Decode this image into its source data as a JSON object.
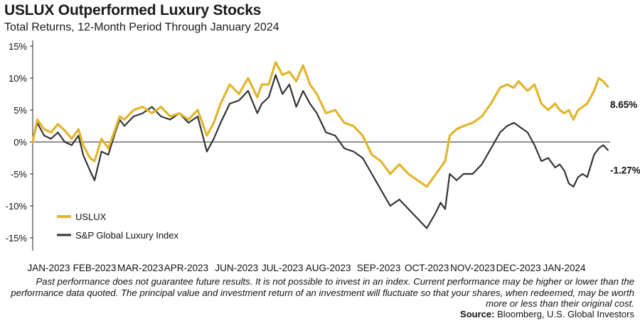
{
  "header": {
    "title": "USLUX Outperformed Luxury Stocks",
    "subtitle": "Total Returns, 12-Month Period Through January 2024"
  },
  "footer": {
    "disclaimer": "Past performance does not guarantee future results. It is not possible to invest in an index. Current performance may be higher or lower than the performance data quoted. The principal value and investment return of an investment will fluctuate so that your shares, when redeemed, may be worth more or less than their original cost.",
    "source_label": "Source:",
    "source_text": "Bloomberg, U.S. Global Investors"
  },
  "colors": {
    "uslux": "#e3b52c",
    "luxury_index": "#333333",
    "axis": "#222222"
  },
  "chart_data": {
    "type": "line",
    "title": "USLUX Outperformed Luxury Stocks",
    "subtitle": "Total Returns, 12-Month Period Through January 2024",
    "xlabel": "",
    "ylabel": "",
    "ylim": [
      -15,
      15
    ],
    "yticks": [
      15,
      10,
      5,
      0,
      -5,
      -10,
      -15
    ],
    "ytick_labels": [
      "15%",
      "10%",
      "5%",
      "0%",
      "-5%",
      "-10%",
      "-15%"
    ],
    "xlim": [
      0,
      12.6
    ],
    "x_categories": [
      "JAN-2023",
      "FEB-2023",
      "MAR-2023",
      "APR-2023",
      "JUN-2023",
      "JUL-2023",
      "AUG-2023",
      "SEP-2023",
      "OCT-2023",
      "NOV-2023",
      "DEC-2023",
      "JAN-2024"
    ],
    "x_category_positions": [
      0.35,
      1.35,
      2.35,
      3.35,
      4.45,
      5.45,
      6.45,
      7.55,
      8.6,
      9.6,
      10.6,
      11.6
    ],
    "grid": false,
    "legend_position": "bottom-left",
    "end_labels": [
      "8.65%",
      "-1.27%"
    ],
    "series": [
      {
        "name": "USLUX",
        "end_label": "8.65%",
        "x": [
          0,
          0.1,
          0.25,
          0.4,
          0.55,
          0.7,
          0.85,
          1.0,
          1.1,
          1.25,
          1.35,
          1.5,
          1.65,
          1.8,
          1.9,
          2.0,
          2.2,
          2.4,
          2.6,
          2.8,
          3.0,
          3.2,
          3.4,
          3.6,
          3.8,
          3.95,
          4.1,
          4.3,
          4.5,
          4.7,
          4.9,
          5.0,
          5.15,
          5.3,
          5.45,
          5.6,
          5.75,
          5.9,
          6.05,
          6.2,
          6.4,
          6.6,
          6.8,
          7.0,
          7.2,
          7.4,
          7.6,
          7.8,
          8.0,
          8.2,
          8.4,
          8.6,
          8.8,
          8.9,
          9.0,
          9.1,
          9.25,
          9.4,
          9.6,
          9.8,
          10.0,
          10.2,
          10.35,
          10.5,
          10.6,
          10.8,
          10.95,
          11.1,
          11.25,
          11.4,
          11.5,
          11.6,
          11.7,
          11.8,
          11.9,
          12.0,
          12.1,
          12.25,
          12.35,
          12.45,
          12.55
        ],
        "values": [
          0,
          3.5,
          2.0,
          1.5,
          2.8,
          1.8,
          0.5,
          2.0,
          -0.5,
          -2.5,
          -3.0,
          0.5,
          -1.0,
          2.0,
          4.0,
          3.5,
          5.0,
          5.5,
          4.5,
          5.5,
          4.0,
          4.5,
          3.5,
          5.0,
          1.0,
          3.0,
          6.0,
          9.0,
          7.5,
          10.0,
          7.0,
          9.0,
          9.0,
          12.5,
          10.5,
          11.0,
          9.5,
          12.0,
          9.0,
          7.5,
          4.5,
          5.0,
          3.0,
          2.5,
          1.0,
          -2.0,
          -3.0,
          -5.0,
          -3.5,
          -5.0,
          -6.0,
          -7.0,
          -5.0,
          -4.0,
          -3.0,
          1.0,
          2.0,
          2.5,
          3.0,
          4.0,
          6.0,
          8.5,
          9.0,
          8.5,
          9.5,
          8.0,
          9.0,
          6.0,
          5.0,
          6.0,
          5.0,
          4.5,
          5.0,
          3.5,
          5.0,
          5.5,
          6.0,
          8.0,
          10.0,
          9.5,
          8.65
        ]
      },
      {
        "name": "S&P Global Luxury Index",
        "end_label": "-1.27%",
        "x": [
          0,
          0.1,
          0.25,
          0.4,
          0.55,
          0.7,
          0.85,
          1.0,
          1.1,
          1.25,
          1.35,
          1.5,
          1.65,
          1.8,
          1.9,
          2.0,
          2.2,
          2.4,
          2.6,
          2.8,
          3.0,
          3.2,
          3.4,
          3.6,
          3.8,
          3.95,
          4.1,
          4.3,
          4.5,
          4.7,
          4.9,
          5.0,
          5.15,
          5.3,
          5.45,
          5.6,
          5.75,
          5.9,
          6.05,
          6.2,
          6.4,
          6.6,
          6.8,
          7.0,
          7.2,
          7.4,
          7.6,
          7.8,
          8.0,
          8.2,
          8.4,
          8.6,
          8.8,
          8.9,
          9.0,
          9.1,
          9.25,
          9.4,
          9.6,
          9.8,
          10.0,
          10.2,
          10.35,
          10.5,
          10.6,
          10.8,
          10.95,
          11.1,
          11.25,
          11.4,
          11.5,
          11.6,
          11.7,
          11.8,
          11.9,
          12.0,
          12.1,
          12.25,
          12.35,
          12.45,
          12.55
        ],
        "values": [
          0,
          3.0,
          1.0,
          0.5,
          1.5,
          0.0,
          -0.5,
          1.0,
          -2.0,
          -4.5,
          -6.0,
          -1.5,
          -2.0,
          1.5,
          3.5,
          2.5,
          4.0,
          4.5,
          5.5,
          4.0,
          3.5,
          4.5,
          3.0,
          4.0,
          -1.5,
          0.5,
          3.0,
          6.0,
          6.5,
          8.0,
          4.5,
          6.0,
          7.0,
          10.5,
          7.5,
          9.0,
          5.5,
          8.0,
          6.0,
          4.5,
          1.5,
          1.0,
          -1.0,
          -1.5,
          -2.5,
          -5.0,
          -7.5,
          -10.0,
          -9.0,
          -10.5,
          -12.0,
          -13.5,
          -11.0,
          -9.5,
          -10.5,
          -5.0,
          -6.0,
          -5.0,
          -5.0,
          -3.5,
          -1.0,
          1.5,
          2.5,
          3.0,
          2.5,
          1.5,
          -0.5,
          -3.0,
          -2.5,
          -4.0,
          -3.5,
          -4.5,
          -6.5,
          -7.0,
          -5.5,
          -5.0,
          -5.5,
          -2.0,
          -1.0,
          -0.5,
          -1.27
        ]
      }
    ]
  }
}
